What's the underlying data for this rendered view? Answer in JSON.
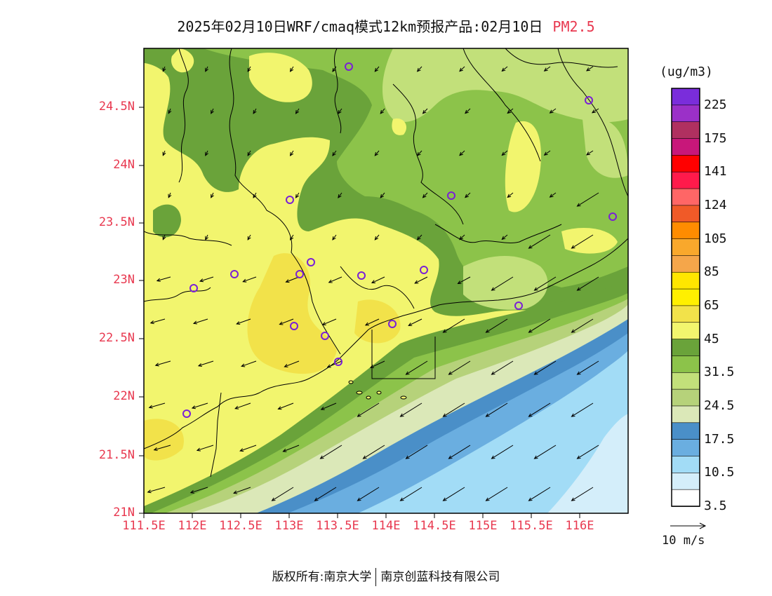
{
  "title": {
    "main": "2025年02月10日WRF/cmaq模式12km预报产品:02月10日",
    "species": "PM2.5"
  },
  "lat_labels": [
    "24.5N",
    "24N",
    "23.5N",
    "23N",
    "22.5N",
    "22N",
    "21.5N",
    "21N"
  ],
  "lon_labels": [
    "111.5E",
    "112E",
    "112.5E",
    "113E",
    "113.5E",
    "114E",
    "114.5E",
    "115E",
    "115.5E",
    "116E"
  ],
  "colorbar": {
    "unit": "(ug/m3)",
    "labels": [
      "225",
      "175",
      "141",
      "124",
      "105",
      "85",
      "65",
      "45",
      "31.5",
      "24.5",
      "17.5",
      "10.5",
      "3.5"
    ],
    "colors": [
      "#7a2ddb",
      "#9b30c8",
      "#b03060",
      "#c8177a",
      "#ff0000",
      "#ff1a4b",
      "#ff6666",
      "#f05a28",
      "#ff8c00",
      "#f9a82c",
      "#f5a64a",
      "#ffe600",
      "#fff000",
      "#f2e24a",
      "#f2f56e",
      "#6aa33a",
      "#8cc34a",
      "#c2e07a",
      "#b6d27a",
      "#dbe8b8",
      "#4a8fc8",
      "#6aaee0",
      "#a2dcf6",
      "#d4eefa",
      "#ffffff"
    ]
  },
  "wind_reference": "10 m/s",
  "footer": {
    "left": "版权所有:南京大学",
    "right": "南京创蓝科技有限公司"
  },
  "stations_icon": "circle-station-icon"
}
